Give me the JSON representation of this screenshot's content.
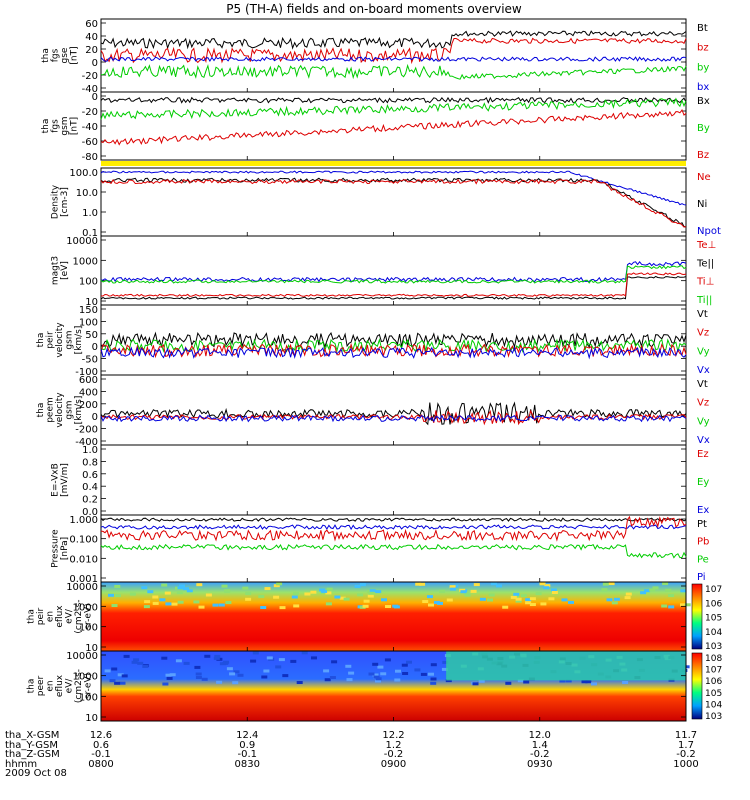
{
  "title": "P5 (TH-A) fields and on-board moments overview",
  "colors": {
    "black": "#000000",
    "red": "#dd0000",
    "green": "#00cc00",
    "blue": "#0000dd",
    "yellow": "#ffee00"
  },
  "panels": [
    {
      "id": "fgs_gse",
      "ylabel": [
        "tha",
        "fgs",
        "gse",
        "[nT]"
      ],
      "ticks": [
        "60",
        "40",
        "20",
        "0",
        "-20",
        "-40"
      ],
      "legend": [
        {
          "t": "Bt",
          "c": "black"
        },
        {
          "t": "bz",
          "c": "red"
        },
        {
          "t": "by",
          "c": "green"
        },
        {
          "t": "bx",
          "c": "blue"
        }
      ]
    },
    {
      "id": "fgs_gsm",
      "ylabel": [
        "tha",
        "fgs",
        "gsm",
        "[nT]"
      ],
      "ticks": [
        "0",
        "-20",
        "-40",
        "-60",
        "-80"
      ],
      "legend": [
        {
          "t": "Bx",
          "c": "black"
        },
        {
          "t": "By",
          "c": "green"
        },
        {
          "t": "Bz",
          "c": "red"
        }
      ]
    },
    {
      "id": "density",
      "ylabel": [
        "Density",
        "[cm-3]"
      ],
      "ticks": [
        "100.0",
        "10.0",
        "1.0",
        "0.1"
      ],
      "legend": [
        {
          "t": "Ne",
          "c": "red"
        },
        {
          "t": "Ni",
          "c": "black"
        },
        {
          "t": "Npot",
          "c": "blue"
        }
      ]
    },
    {
      "id": "temperature",
      "ylabel": [
        "magt3",
        "[eV]"
      ],
      "ticks": [
        "10000",
        "1000",
        "100",
        "10"
      ],
      "legend": [
        {
          "t": "Te⊥",
          "c": "red"
        },
        {
          "t": "Te||",
          "c": "black"
        },
        {
          "t": "Ti⊥",
          "c": "red"
        },
        {
          "t": "Ti||",
          "c": "green"
        }
      ]
    },
    {
      "id": "peir_velocity",
      "ylabel": [
        "tha",
        "peir",
        "velocity",
        "gsm",
        "[km/s]"
      ],
      "ticks": [
        "150",
        "100",
        "50",
        "0",
        "-50",
        "-100"
      ],
      "legend": [
        {
          "t": "Vt",
          "c": "black"
        },
        {
          "t": "Vz",
          "c": "red"
        },
        {
          "t": "Vy",
          "c": "green"
        },
        {
          "t": "Vx",
          "c": "blue"
        }
      ]
    },
    {
      "id": "peem_velocity",
      "ylabel": [
        "tha",
        "peem",
        "velocity",
        "gsm",
        "[km/s]"
      ],
      "ticks": [
        "600",
        "400",
        "200",
        "0",
        "-200",
        "-400"
      ],
      "legend": [
        {
          "t": "Vt",
          "c": "black"
        },
        {
          "t": "Vz",
          "c": "red"
        },
        {
          "t": "Vy",
          "c": "green"
        },
        {
          "t": "Vx",
          "c": "blue"
        }
      ]
    },
    {
      "id": "efield",
      "ylabel": [
        "E=-VxB",
        "[mV/m]"
      ],
      "ticks": [
        "1.0",
        "0.8",
        "0.6",
        "0.4",
        "0.2",
        "0.0"
      ],
      "legend": [
        {
          "t": "Ez",
          "c": "red"
        },
        {
          "t": "Ey",
          "c": "green"
        },
        {
          "t": "Ex",
          "c": "blue"
        }
      ]
    },
    {
      "id": "pressure",
      "ylabel": [
        "Pressure",
        "[nPa]"
      ],
      "ticks": [
        "1.000",
        "0.100",
        "0.010",
        "0.001"
      ],
      "legend": [
        {
          "t": "Pt",
          "c": "black"
        },
        {
          "t": "Pb",
          "c": "red"
        },
        {
          "t": "Pe",
          "c": "green"
        },
        {
          "t": "Pi",
          "c": "blue"
        }
      ]
    },
    {
      "id": "peir_eflux",
      "ylabel": [
        "tha",
        "peir",
        "en",
        "eflux",
        "eV/",
        "(cm^2-s-",
        "sr-eV)"
      ],
      "ticks": [
        "10000",
        "1000",
        "100",
        "10"
      ],
      "colorbar": [
        "10^7",
        "10^6",
        "10^5",
        "10^4",
        "10^3"
      ]
    },
    {
      "id": "peer_eflux",
      "ylabel": [
        "tha",
        "peer",
        "en",
        "eflux",
        "eV/",
        "(cm^2-s-",
        "sr-eV)"
      ],
      "ticks": [
        "10000",
        "1000",
        "100",
        "10"
      ],
      "colorbar": [
        "10^8",
        "10^7",
        "10^6",
        "10^5",
        "10^4",
        "10^3"
      ]
    }
  ],
  "footer": {
    "row_labels": [
      "tha_X-GSM",
      "tha_Y-GSM",
      "tha_Z-GSM",
      "hhmm",
      "2009 Oct 08"
    ],
    "columns": [
      {
        "x": "12.6",
        "y": "0.6",
        "z": "-0.1",
        "t": "0800"
      },
      {
        "x": "12.4",
        "y": "0.9",
        "z": "-0.1",
        "t": "0830"
      },
      {
        "x": "12.2",
        "y": "1.2",
        "z": "-0.2",
        "t": "0900"
      },
      {
        "x": "12.0",
        "y": "1.4",
        "z": "-0.2",
        "t": "0930"
      },
      {
        "x": "11.7",
        "y": "1.7",
        "z": "-0.2",
        "t": "1000"
      }
    ]
  },
  "chart_data": {
    "type": "line",
    "title": "P5 (TH-A) fields and on-board moments overview",
    "x": [
      "0800",
      "0830",
      "0900",
      "0930",
      "1000"
    ],
    "xlabel": "hhmm",
    "date": "2009 Oct 08",
    "series": [
      {
        "name": "Bt",
        "values": [
          25,
          28,
          32,
          38,
          42
        ]
      },
      {
        "name": "bz",
        "values": [
          15,
          18,
          12,
          28,
          40
        ]
      },
      {
        "name": "by",
        "values": [
          -15,
          -10,
          -30,
          -5,
          0
        ]
      },
      {
        "name": "bx",
        "values": [
          2,
          2,
          3,
          5,
          2
        ]
      },
      {
        "name": "Ne",
        "values": [
          30,
          30,
          25,
          15,
          0.5
        ]
      },
      {
        "name": "Npot",
        "values": [
          60,
          60,
          70,
          80,
          0.5
        ]
      }
    ]
  }
}
